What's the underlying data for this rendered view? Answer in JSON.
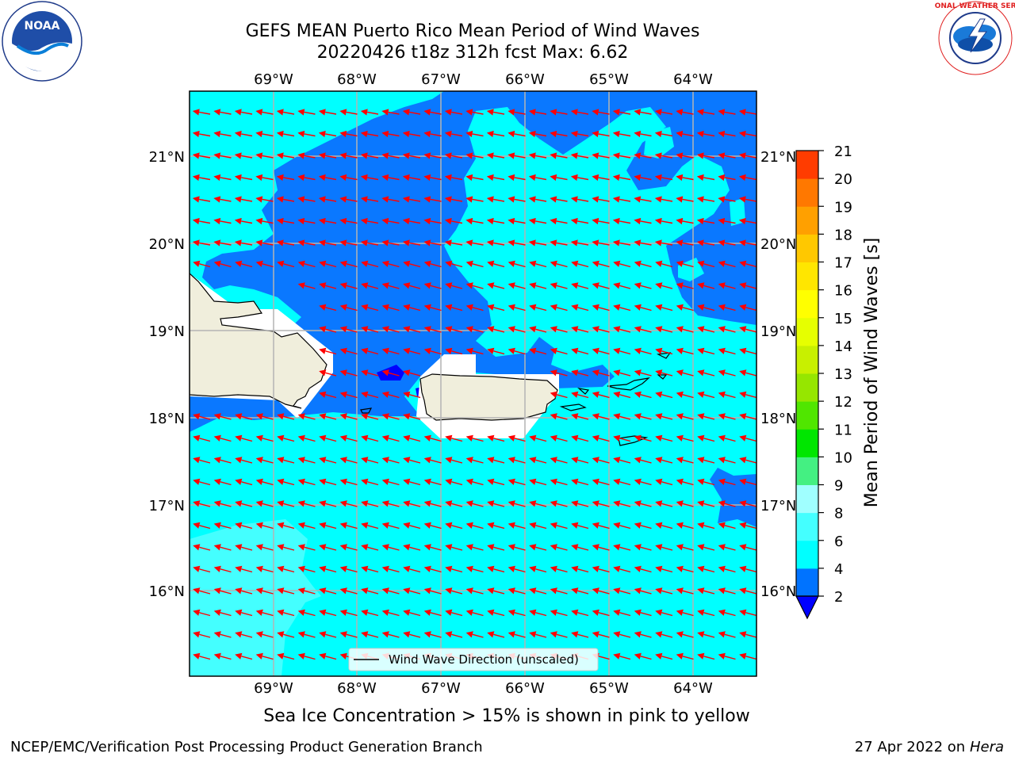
{
  "header": {
    "title_line1": "GEFS MEAN Puerto Rico Mean Period of Wind Waves",
    "title_line2": "20220426 t18z 312h fcst   Max: 6.62"
  },
  "map": {
    "lon_labels": [
      "69°W",
      "68°W",
      "67°W",
      "66°W",
      "65°W",
      "64°W"
    ],
    "lat_labels": [
      "21°N",
      "20°N",
      "19°N",
      "18°N",
      "17°N",
      "16°N"
    ],
    "legend_label": "Wind Wave Direction (unscaled)"
  },
  "colorbar": {
    "label": "Mean Period of Wind Waves [s]",
    "ticks": [
      "2",
      "4",
      "6",
      "8",
      "9",
      "10",
      "11",
      "12",
      "13",
      "14",
      "15",
      "16",
      "17",
      "18",
      "19",
      "20",
      "21"
    ],
    "colors": [
      "#0073ff",
      "#00ffff",
      "#44ffff",
      "#a0ffff",
      "#44f082",
      "#00e600",
      "#50e600",
      "#96e600",
      "#c8f000",
      "#e6ff00",
      "#ffff00",
      "#ffe600",
      "#ffc800",
      "#ffa000",
      "#ff7800",
      "#ff3c00",
      "#ff0000"
    ],
    "under_color": "#0000ff"
  },
  "colors": {
    "ocean_cyan": "#00ffff",
    "ocean_blue": "#0a78ff",
    "deep_blue": "#0000ff",
    "land": "#f0eedc",
    "arrow": "#ff0000",
    "grid": "#b4b4b4"
  },
  "footer": {
    "note": "Sea Ice Concentration > 15% is shown in pink to yellow",
    "left": "NCEP/EMC/Verification Post Processing Product Generation Branch",
    "right_date": "27 Apr 2022 on",
    "right_host": "Hera"
  },
  "logos": {
    "noaa_text": "NOAA",
    "nws_text": "NATIONAL WEATHER SERVICE"
  }
}
